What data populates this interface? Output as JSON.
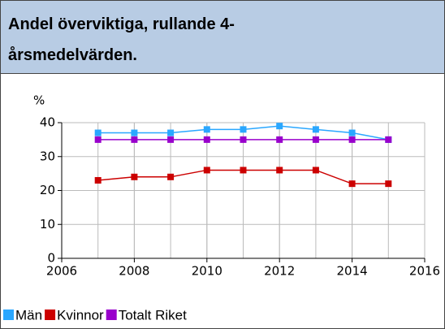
{
  "chart_data": {
    "type": "line",
    "title": "Andel överviktiga, rullande 4-årsmedelvärden.",
    "y_label": "%",
    "x": [
      2007,
      2008,
      2009,
      2010,
      2011,
      2012,
      2013,
      2014,
      2015
    ],
    "series": [
      {
        "name": "Män",
        "color": "#2aa7ff",
        "values": [
          37,
          37,
          37,
          38,
          38,
          39,
          38,
          37,
          35
        ]
      },
      {
        "name": "Kvinnor",
        "color": "#cc0000",
        "values": [
          23,
          24,
          24,
          26,
          26,
          26,
          26,
          22,
          22
        ]
      },
      {
        "name": "Totalt Riket",
        "color": "#9900cc",
        "values": [
          35,
          35,
          35,
          35,
          35,
          35,
          35,
          35,
          35
        ]
      }
    ],
    "xlim": [
      2006,
      2016
    ],
    "xticks": [
      2006,
      2008,
      2010,
      2012,
      2014,
      2016
    ],
    "ylim": [
      0,
      40
    ],
    "yticks": [
      0,
      10,
      20,
      30,
      40
    ],
    "grid": true
  }
}
